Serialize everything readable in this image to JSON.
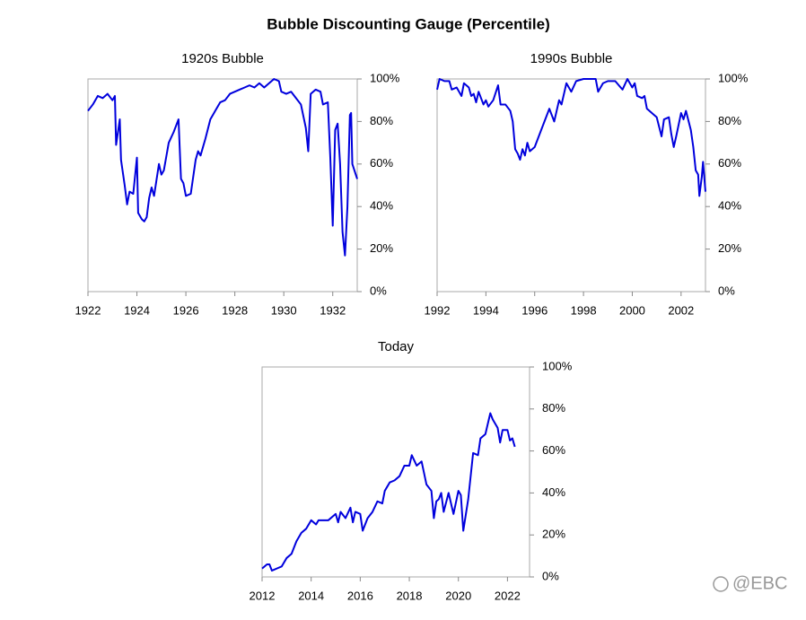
{
  "title": "Bubble Discounting Gauge (Percentile)",
  "watermark": "@EBC",
  "chart_data": [
    {
      "type": "line",
      "title": "1920s Bubble",
      "x": [
        1922.0,
        1922.2,
        1922.4,
        1922.6,
        1922.8,
        1923.0,
        1923.1,
        1923.15,
        1923.3,
        1923.35,
        1923.5,
        1923.6,
        1923.7,
        1923.85,
        1924.0,
        1924.05,
        1924.2,
        1924.3,
        1924.4,
        1924.5,
        1924.6,
        1924.7,
        1924.9,
        1925.0,
        1925.1,
        1925.3,
        1925.5,
        1925.7,
        1925.8,
        1925.9,
        1926.0,
        1926.2,
        1926.4,
        1926.5,
        1926.6,
        1926.8,
        1927.0,
        1927.2,
        1927.4,
        1927.6,
        1927.8,
        1928.0,
        1928.2,
        1928.4,
        1928.6,
        1928.8,
        1929.0,
        1929.2,
        1929.4,
        1929.6,
        1929.8,
        1929.9,
        1930.1,
        1930.3,
        1930.5,
        1930.7,
        1930.9,
        1931.0,
        1931.1,
        1931.3,
        1931.5,
        1931.6,
        1931.8,
        1931.9,
        1932.0,
        1932.1,
        1932.2,
        1932.3,
        1932.4,
        1932.5,
        1932.6,
        1932.7,
        1932.75,
        1932.8,
        1933.0
      ],
      "series": [
        {
          "name": "1920s Bubble",
          "color": "#0000dd",
          "values": [
            85,
            88,
            92,
            91,
            93,
            90,
            92,
            69,
            81,
            62,
            50,
            41,
            47,
            46,
            63,
            37,
            34,
            33,
            35,
            44,
            49,
            45,
            60,
            55,
            57,
            70,
            75,
            81,
            53,
            51,
            45,
            46,
            62,
            66,
            64,
            72,
            81,
            85,
            89,
            90,
            93,
            94,
            95,
            96,
            97,
            96,
            98,
            96,
            98,
            100,
            99,
            94,
            93,
            94,
            91,
            88,
            77,
            66,
            93,
            95,
            94,
            88,
            89,
            63,
            31,
            76,
            79,
            60,
            28,
            17,
            40,
            83,
            84,
            60,
            53
          ]
        }
      ],
      "xlim": [
        1922,
        1933
      ],
      "xticks": [
        1922,
        1924,
        1926,
        1928,
        1930,
        1932
      ],
      "ylim": [
        0,
        100
      ],
      "yticks": [
        {
          "value": 0,
          "label": "0%"
        },
        {
          "value": 20,
          "label": "20%"
        },
        {
          "value": 40,
          "label": "40%"
        },
        {
          "value": 60,
          "label": "60%"
        },
        {
          "value": 80,
          "label": "80%"
        },
        {
          "value": 100,
          "label": "100%"
        }
      ]
    },
    {
      "type": "line",
      "title": "1990s Bubble",
      "x": [
        1992.0,
        1992.1,
        1992.3,
        1992.5,
        1992.6,
        1992.8,
        1993.0,
        1993.1,
        1993.3,
        1993.4,
        1993.5,
        1993.6,
        1993.7,
        1993.9,
        1994.0,
        1994.1,
        1994.3,
        1994.5,
        1994.6,
        1994.8,
        1995.0,
        1995.1,
        1995.2,
        1995.3,
        1995.4,
        1995.5,
        1995.6,
        1995.7,
        1995.8,
        1996.0,
        1996.2,
        1996.4,
        1996.6,
        1996.8,
        1997.0,
        1997.1,
        1997.3,
        1997.5,
        1997.7,
        1998.0,
        1998.3,
        1998.5,
        1998.6,
        1998.8,
        1999.0,
        1999.3,
        1999.6,
        1999.8,
        2000.0,
        2000.1,
        2000.2,
        2000.4,
        2000.5,
        2000.6,
        2000.8,
        2001.0,
        2001.2,
        2001.3,
        2001.5,
        2001.6,
        2001.7,
        2001.8,
        2002.0,
        2002.1,
        2002.2,
        2002.4,
        2002.5,
        2002.6,
        2002.7,
        2002.75,
        2002.85,
        2002.9,
        2003.0
      ],
      "series": [
        {
          "name": "1990s Bubble",
          "color": "#0000dd",
          "values": [
            95,
            100,
            99,
            99,
            95,
            96,
            92,
            98,
            96,
            92,
            93,
            89,
            94,
            88,
            90,
            87,
            90,
            97,
            88,
            88,
            85,
            80,
            67,
            65,
            62,
            67,
            64,
            70,
            66,
            68,
            74,
            80,
            86,
            80,
            90,
            88,
            98,
            94,
            99,
            100,
            100,
            100,
            94,
            98,
            99,
            99,
            95,
            100,
            96,
            98,
            92,
            91,
            92,
            86,
            84,
            82,
            73,
            81,
            82,
            74,
            68,
            73,
            84,
            81,
            85,
            76,
            68,
            57,
            55,
            45,
            54,
            61,
            47
          ]
        }
      ],
      "xlim": [
        1992,
        2003
      ],
      "xticks": [
        1992,
        1994,
        1996,
        1998,
        2000,
        2002
      ],
      "ylim": [
        0,
        100
      ],
      "yticks": [
        {
          "value": 0,
          "label": "0%"
        },
        {
          "value": 20,
          "label": "20%"
        },
        {
          "value": 40,
          "label": "40%"
        },
        {
          "value": 60,
          "label": "60%"
        },
        {
          "value": 80,
          "label": "80%"
        },
        {
          "value": 100,
          "label": "100%"
        }
      ]
    },
    {
      "type": "line",
      "title": "Today",
      "x": [
        2012.0,
        2012.2,
        2012.3,
        2012.4,
        2012.6,
        2012.8,
        2013.0,
        2013.2,
        2013.4,
        2013.6,
        2013.8,
        2014.0,
        2014.2,
        2014.3,
        2014.5,
        2014.7,
        2015.0,
        2015.1,
        2015.2,
        2015.4,
        2015.6,
        2015.7,
        2015.8,
        2016.0,
        2016.1,
        2016.3,
        2016.5,
        2016.7,
        2016.9,
        2017.0,
        2017.2,
        2017.4,
        2017.6,
        2017.8,
        2018.0,
        2018.1,
        2018.3,
        2018.5,
        2018.7,
        2018.9,
        2019.0,
        2019.1,
        2019.2,
        2019.3,
        2019.4,
        2019.6,
        2019.8,
        2020.0,
        2020.1,
        2020.2,
        2020.4,
        2020.6,
        2020.8,
        2020.9,
        2021.1,
        2021.3,
        2021.4,
        2021.6,
        2021.7,
        2021.8,
        2022.0,
        2022.1,
        2022.2,
        2022.3
      ],
      "series": [
        {
          "name": "Today",
          "color": "#0000dd",
          "values": [
            4,
            6,
            6,
            3,
            4,
            5,
            9,
            11,
            17,
            21,
            23,
            27,
            25,
            27,
            27,
            27,
            30,
            26,
            31,
            28,
            33,
            26,
            31,
            30,
            22,
            28,
            31,
            36,
            35,
            41,
            45,
            46,
            48,
            53,
            53,
            58,
            53,
            55,
            44,
            41,
            28,
            36,
            37,
            40,
            31,
            40,
            30,
            41,
            39,
            22,
            37,
            59,
            58,
            66,
            68,
            78,
            75,
            71,
            64,
            70,
            70,
            65,
            66,
            62
          ]
        }
      ],
      "xlim": [
        2012,
        2022.9
      ],
      "xticks": [
        2012,
        2014,
        2016,
        2018,
        2020,
        2022
      ],
      "ylim": [
        0,
        100
      ],
      "yticks": [
        {
          "value": 0,
          "label": "0%"
        },
        {
          "value": 20,
          "label": "20%"
        },
        {
          "value": 40,
          "label": "40%"
        },
        {
          "value": 60,
          "label": "60%"
        },
        {
          "value": 80,
          "label": "80%"
        },
        {
          "value": 100,
          "label": "100%"
        }
      ]
    }
  ]
}
